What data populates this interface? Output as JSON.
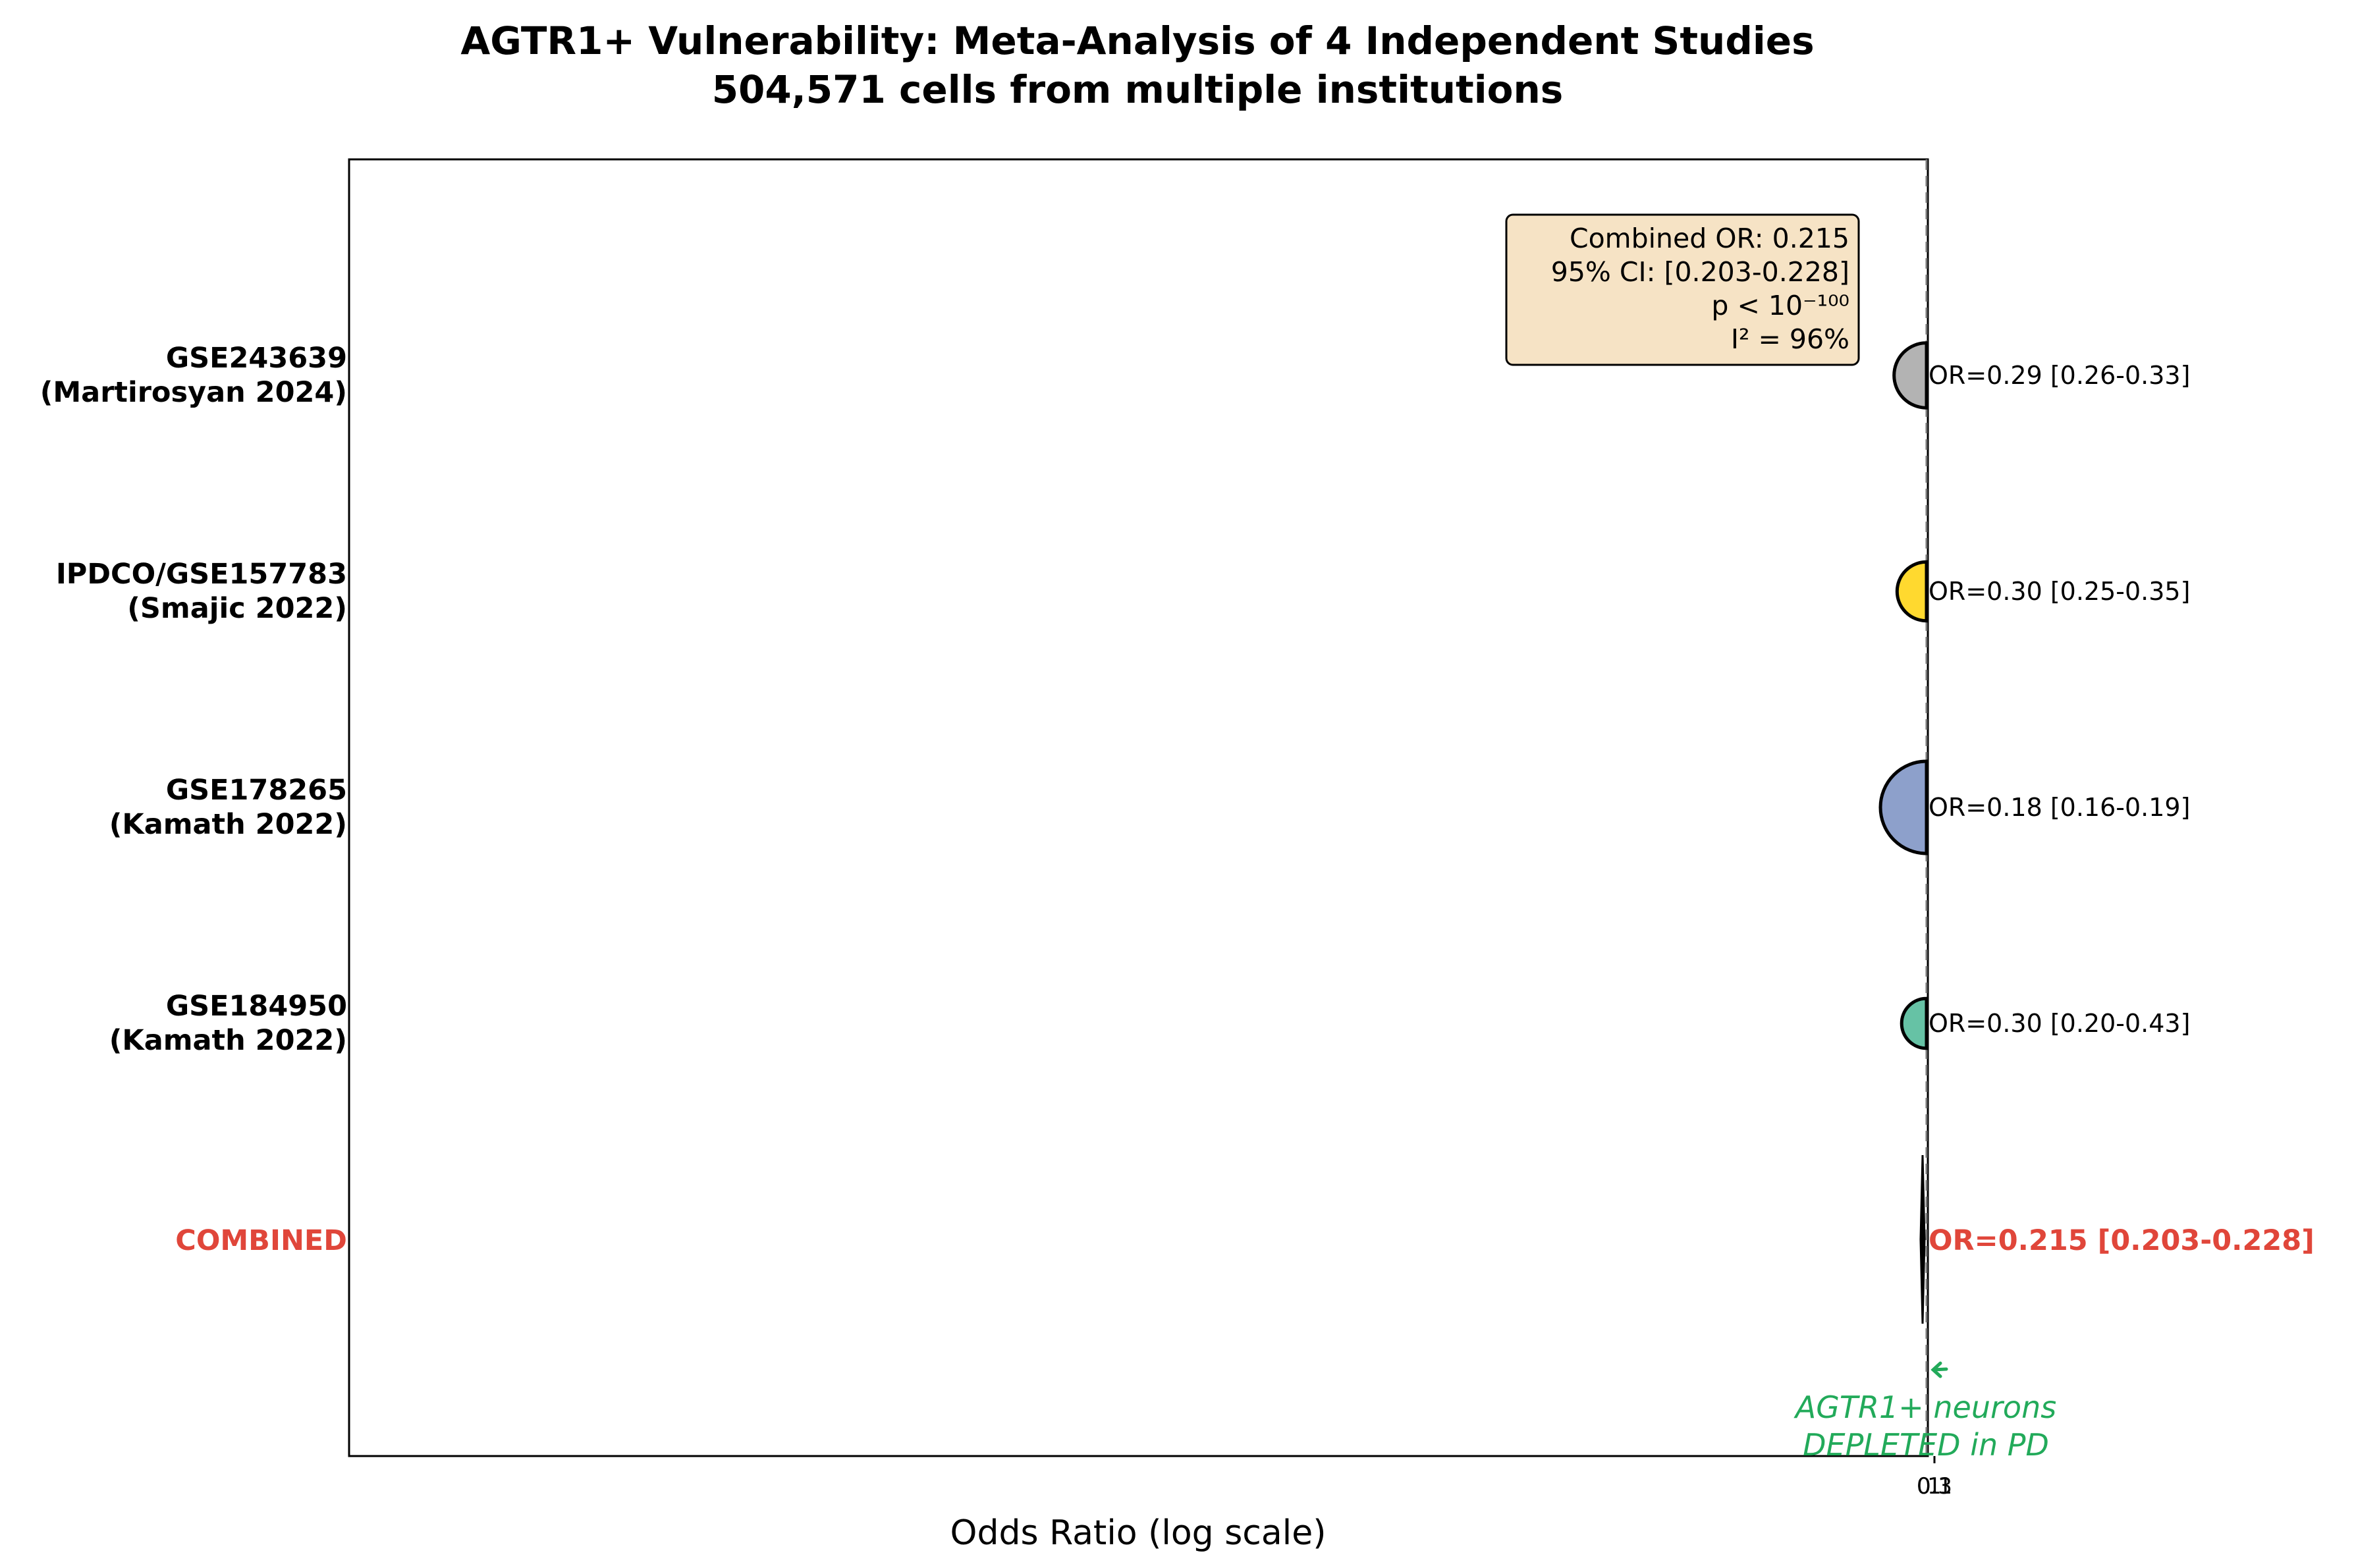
{
  "chart_data": {
    "type": "scatter",
    "subtype": "forest-plot",
    "title": "AGTR1+ Vulnerability: Meta-Analysis of 4 Independent Studies",
    "subtitle": "504,571 cells from multiple institutions",
    "xlabel": "Odds Ratio (log scale)",
    "xscale": "log",
    "x_tick_labels": [
      "0.1",
      "0.3",
      "1"
    ],
    "reference_line": 1,
    "studies": [
      {
        "id": "GSE243639",
        "author": "(Martirosyan 2024)",
        "or": 0.29,
        "ci": [
          0.26,
          0.33
        ],
        "label": "OR=0.29 [0.26-0.33]",
        "color": "#b3b3b3",
        "weight": 0.55
      },
      {
        "id": "IPDCO/GSE157783",
        "author": "(Smajic 2022)",
        "or": 0.3,
        "ci": [
          0.25,
          0.35
        ],
        "label": "OR=0.30 [0.25-0.35]",
        "color": "#ffd92f",
        "weight": 0.45
      },
      {
        "id": "GSE178265",
        "author": "(Kamath 2022)",
        "or": 0.18,
        "ci": [
          0.16,
          0.19
        ],
        "label": "OR=0.18 [0.16-0.19]",
        "color": "#8da0cb",
        "weight": 1.0
      },
      {
        "id": "GSE184950",
        "author": "(Kamath 2022)",
        "or": 0.3,
        "ci": [
          0.2,
          0.43
        ],
        "label": "OR=0.30 [0.20-0.43]",
        "color": "#66c2a5",
        "weight": 0.3
      }
    ],
    "combined": {
      "name": "COMBINED",
      "or": 0.215,
      "ci": [
        0.203,
        0.228
      ],
      "label": "OR=0.215 [0.203-0.228]",
      "color": "#e0463a"
    },
    "stats_box": [
      "Combined OR: 0.215",
      "95% CI: [0.203-0.228]",
      "p < 10⁻¹⁰⁰",
      "I² = 96%"
    ],
    "annotation": {
      "lines": [
        "AGTR1+ neurons",
        "DEPLETED in PD"
      ],
      "color": "#22aa5a"
    }
  }
}
